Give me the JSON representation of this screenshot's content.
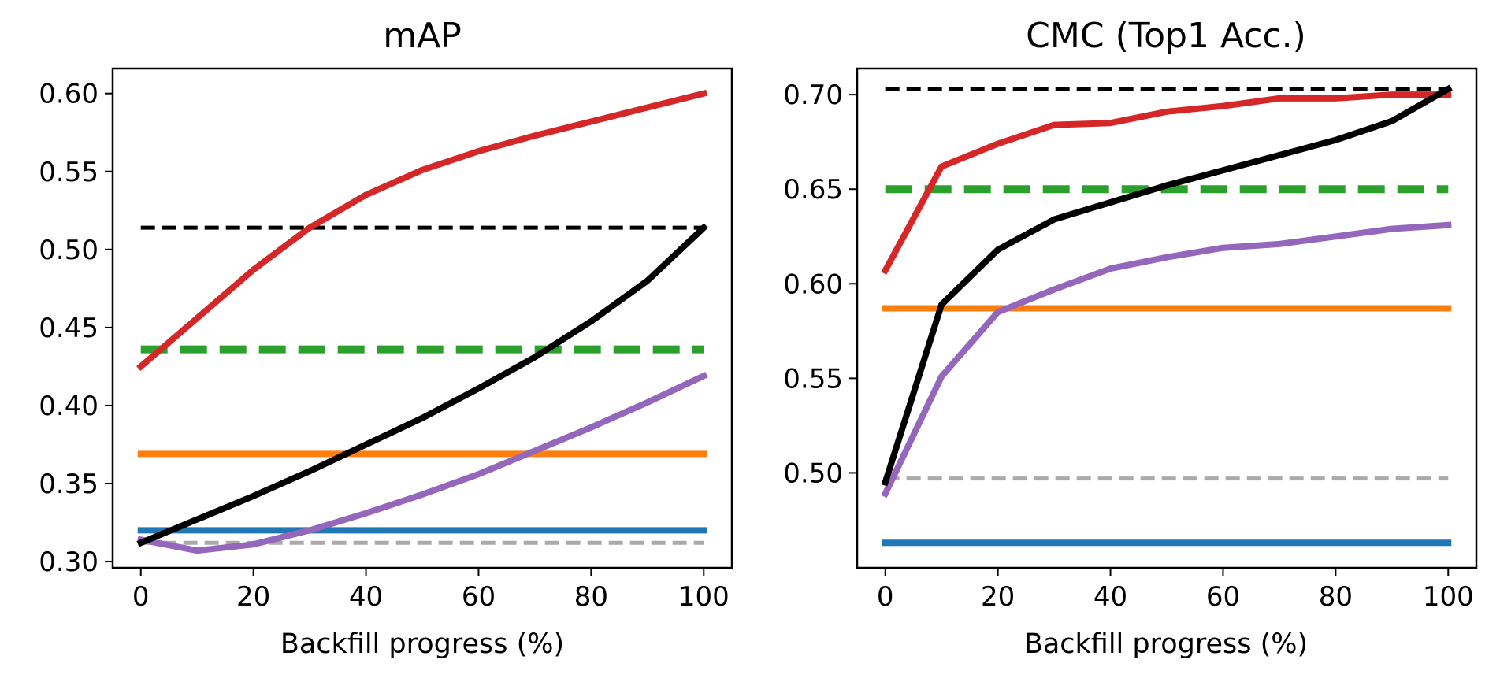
{
  "chart_data": [
    {
      "type": "line",
      "title": "mAP",
      "xlabel": "Backfill progress (%)",
      "ylabel": "",
      "xlim": [
        -5,
        105
      ],
      "ylim": [
        0.296,
        0.616
      ],
      "xticks": [
        0,
        20,
        40,
        60,
        80,
        100
      ],
      "xtick_labels": [
        "0",
        "20",
        "40",
        "60",
        "80",
        "100"
      ],
      "yticks": [
        0.3,
        0.35,
        0.4,
        0.45,
        0.5,
        0.55,
        0.6
      ],
      "ytick_labels": [
        "0.30",
        "0.35",
        "0.40",
        "0.45",
        "0.50",
        "0.55",
        "0.60"
      ],
      "grid": false,
      "x": [
        0,
        10,
        20,
        30,
        40,
        50,
        60,
        70,
        80,
        90,
        100
      ],
      "series": [
        {
          "color": "#aaaaaa",
          "style": "dashed",
          "values": [
            0.312,
            0.312,
            0.312,
            0.312,
            0.312,
            0.312,
            0.312,
            0.312,
            0.312,
            0.312,
            0.312
          ]
        },
        {
          "color": "#1f77b4",
          "style": "solid",
          "values": [
            0.32,
            0.32,
            0.32,
            0.32,
            0.32,
            0.32,
            0.32,
            0.32,
            0.32,
            0.32,
            0.32
          ]
        },
        {
          "color": "#ff7f0e",
          "style": "solid",
          "values": [
            0.369,
            0.369,
            0.369,
            0.369,
            0.369,
            0.369,
            0.369,
            0.369,
            0.369,
            0.369,
            0.369
          ]
        },
        {
          "color": "#2ca02c",
          "style": "dashed-thick",
          "values": [
            0.436,
            0.436,
            0.436,
            0.436,
            0.436,
            0.436,
            0.436,
            0.436,
            0.436,
            0.436,
            0.436
          ]
        },
        {
          "color": "#000000",
          "style": "dashed",
          "values": [
            0.514,
            0.514,
            0.514,
            0.514,
            0.514,
            0.514,
            0.514,
            0.514,
            0.514,
            0.514,
            0.514
          ]
        },
        {
          "color": "#9467bd",
          "style": "solid",
          "values": [
            0.314,
            0.307,
            0.311,
            0.32,
            0.331,
            0.343,
            0.356,
            0.371,
            0.386,
            0.402,
            0.419
          ]
        },
        {
          "color": "#000000",
          "style": "solid",
          "values": [
            0.312,
            0.327,
            0.342,
            0.358,
            0.375,
            0.392,
            0.411,
            0.431,
            0.454,
            0.48,
            0.514
          ]
        },
        {
          "color": "#d62728",
          "style": "solid",
          "values": [
            0.425,
            0.456,
            0.487,
            0.514,
            0.535,
            0.551,
            0.563,
            0.573,
            0.582,
            0.591,
            0.6
          ]
        }
      ]
    },
    {
      "type": "line",
      "title": "CMC (Top1 Acc.)",
      "xlabel": "Backfill progress (%)",
      "ylabel": "",
      "xlim": [
        -5,
        105
      ],
      "ylim": [
        0.4498,
        0.7138
      ],
      "xticks": [
        0,
        20,
        40,
        60,
        80,
        100
      ],
      "xtick_labels": [
        "0",
        "20",
        "40",
        "60",
        "80",
        "100"
      ],
      "yticks": [
        0.5,
        0.55,
        0.6,
        0.65,
        0.7
      ],
      "ytick_labels": [
        "0.50",
        "0.55",
        "0.60",
        "0.65",
        "0.70"
      ],
      "grid": false,
      "x": [
        0,
        10,
        20,
        30,
        40,
        50,
        60,
        70,
        80,
        90,
        100
      ],
      "series": [
        {
          "color": "#aaaaaa",
          "style": "dashed",
          "values": [
            0.497,
            0.497,
            0.497,
            0.497,
            0.497,
            0.497,
            0.497,
            0.497,
            0.497,
            0.497,
            0.497
          ]
        },
        {
          "color": "#1f77b4",
          "style": "solid",
          "values": [
            0.463,
            0.463,
            0.463,
            0.463,
            0.463,
            0.463,
            0.463,
            0.463,
            0.463,
            0.463,
            0.463
          ]
        },
        {
          "color": "#ff7f0e",
          "style": "solid",
          "values": [
            0.587,
            0.587,
            0.587,
            0.587,
            0.587,
            0.587,
            0.587,
            0.587,
            0.587,
            0.587,
            0.587
          ]
        },
        {
          "color": "#2ca02c",
          "style": "dashed-thick",
          "values": [
            0.65,
            0.65,
            0.65,
            0.65,
            0.65,
            0.65,
            0.65,
            0.65,
            0.65,
            0.65,
            0.65
          ]
        },
        {
          "color": "#000000",
          "style": "dashed",
          "values": [
            0.703,
            0.703,
            0.703,
            0.703,
            0.703,
            0.703,
            0.703,
            0.703,
            0.703,
            0.703,
            0.703
          ]
        },
        {
          "color": "#9467bd",
          "style": "solid",
          "values": [
            0.489,
            0.551,
            0.585,
            0.597,
            0.608,
            0.614,
            0.619,
            0.621,
            0.625,
            0.629,
            0.631
          ]
        },
        {
          "color": "#d62728",
          "style": "solid",
          "values": [
            0.607,
            0.662,
            0.674,
            0.684,
            0.685,
            0.691,
            0.694,
            0.698,
            0.698,
            0.7,
            0.7
          ]
        },
        {
          "color": "#000000",
          "style": "solid",
          "values": [
            0.495,
            0.589,
            0.618,
            0.634,
            0.643,
            0.652,
            0.66,
            0.668,
            0.676,
            0.686,
            0.703
          ]
        }
      ]
    }
  ]
}
